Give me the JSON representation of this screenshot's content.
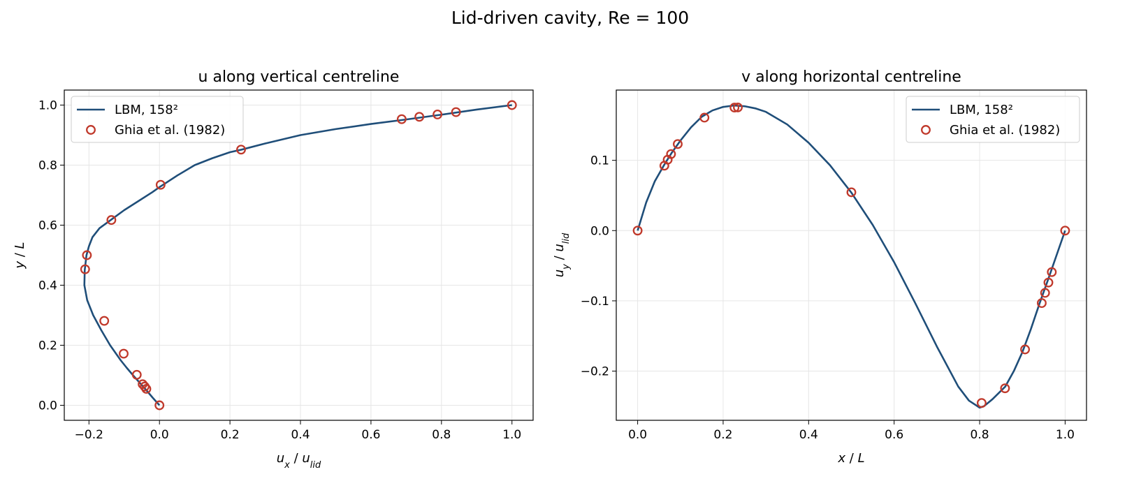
{
  "figure_title": "Lid-driven cavity, Re = 100",
  "colors": {
    "simulation_line": "#1f4e79",
    "reference_marker": "#c0392b",
    "grid": "#e6e6e6",
    "axes": "#000000"
  },
  "chart_data": [
    {
      "type": "line",
      "title": "u along vertical centreline",
      "xlabel": "u_x / u_lid",
      "ylabel": "y / L",
      "xlim": [
        -0.27,
        1.06
      ],
      "ylim": [
        -0.05,
        1.05
      ],
      "xticks": [
        -0.2,
        0.0,
        0.2,
        0.4,
        0.6,
        0.8,
        1.0
      ],
      "xtick_labels": [
        "−0.2",
        "0.0",
        "0.2",
        "0.4",
        "0.6",
        "0.8",
        "1.0"
      ],
      "yticks": [
        0.0,
        0.2,
        0.4,
        0.6,
        0.8,
        1.0
      ],
      "ytick_labels": [
        "0.0",
        "0.2",
        "0.4",
        "0.6",
        "0.8",
        "1.0"
      ],
      "grid": true,
      "legend": "top-left",
      "series": [
        {
          "name": "LBM, 158²",
          "kind": "line",
          "x": [
            0.0,
            -0.019,
            -0.037,
            -0.056,
            -0.075,
            -0.093,
            -0.11,
            -0.14,
            -0.165,
            -0.188,
            -0.205,
            -0.213,
            -0.212,
            -0.207,
            -0.2,
            -0.19,
            -0.17,
            -0.135,
            -0.1,
            -0.06,
            -0.02,
            0.0,
            0.05,
            0.1,
            0.15,
            0.2,
            0.233,
            0.3,
            0.4,
            0.5,
            0.6,
            0.7,
            0.8,
            0.9,
            1.0
          ],
          "y": [
            0.0,
            0.025,
            0.05,
            0.075,
            0.1,
            0.125,
            0.15,
            0.2,
            0.25,
            0.3,
            0.35,
            0.4,
            0.45,
            0.5,
            0.53,
            0.56,
            0.59,
            0.62,
            0.65,
            0.68,
            0.71,
            0.7266,
            0.765,
            0.8,
            0.823,
            0.843,
            0.8516,
            0.872,
            0.9,
            0.92,
            0.937,
            0.952,
            0.968,
            0.985,
            1.0
          ]
        },
        {
          "name": "Ghia et al. (1982)",
          "kind": "scatter",
          "x": [
            0.0,
            -0.03717,
            -0.04192,
            -0.04775,
            -0.06434,
            -0.1015,
            -0.15662,
            -0.2109,
            -0.20581,
            -0.13641,
            0.00332,
            0.23151,
            0.68717,
            0.73722,
            0.78871,
            0.84123,
            1.0
          ],
          "y": [
            0.0,
            0.0547,
            0.0625,
            0.0703,
            0.1016,
            0.1719,
            0.2813,
            0.4531,
            0.5,
            0.6172,
            0.7344,
            0.8516,
            0.9531,
            0.9609,
            0.9688,
            0.9766,
            1.0
          ]
        }
      ]
    },
    {
      "type": "line",
      "title": "v along horizontal centreline",
      "xlabel": "x / L",
      "ylabel": "u_y / u_lid",
      "xlim": [
        -0.05,
        1.05
      ],
      "ylim": [
        -0.27,
        0.2
      ],
      "xticks": [
        0.0,
        0.2,
        0.4,
        0.6,
        0.8,
        1.0
      ],
      "xtick_labels": [
        "0.0",
        "0.2",
        "0.4",
        "0.6",
        "0.8",
        "1.0"
      ],
      "yticks": [
        -0.2,
        -0.1,
        0.0,
        0.1
      ],
      "ytick_labels": [
        "−0.2",
        "−0.1",
        "0.0",
        "0.1"
      ],
      "grid": true,
      "legend": "top-right",
      "series": [
        {
          "name": "LBM, 158²",
          "kind": "line",
          "x": [
            0.0,
            0.02,
            0.04,
            0.0625,
            0.08,
            0.1,
            0.125,
            0.15,
            0.175,
            0.2,
            0.225,
            0.25,
            0.275,
            0.3,
            0.35,
            0.4,
            0.45,
            0.5,
            0.55,
            0.6,
            0.65,
            0.7,
            0.75,
            0.775,
            0.8,
            0.81,
            0.83,
            0.86,
            0.88,
            0.9,
            0.92,
            0.94,
            0.96,
            0.98,
            1.0
          ],
          "y": [
            0.0,
            0.04,
            0.07,
            0.094,
            0.111,
            0.128,
            0.147,
            0.162,
            0.171,
            0.176,
            0.178,
            0.177,
            0.174,
            0.169,
            0.151,
            0.125,
            0.093,
            0.054,
            0.008,
            -0.045,
            -0.104,
            -0.165,
            -0.222,
            -0.242,
            -0.252,
            -0.25,
            -0.24,
            -0.222,
            -0.2,
            -0.173,
            -0.14,
            -0.104,
            -0.07,
            -0.035,
            0.0
          ]
        },
        {
          "name": "Ghia et al. (1982)",
          "kind": "scatter",
          "x": [
            0.0,
            0.0625,
            0.0703,
            0.0781,
            0.0938,
            0.1563,
            0.2266,
            0.2344,
            0.5,
            0.8047,
            0.8594,
            0.9063,
            0.9453,
            0.9531,
            0.9609,
            0.9688,
            1.0
          ],
          "y": [
            0.0,
            0.09233,
            0.10091,
            0.1089,
            0.12317,
            0.16077,
            0.17507,
            0.17527,
            0.05454,
            -0.24533,
            -0.22445,
            -0.16914,
            -0.10313,
            -0.08864,
            -0.07391,
            -0.05906,
            0.0
          ]
        }
      ]
    }
  ]
}
